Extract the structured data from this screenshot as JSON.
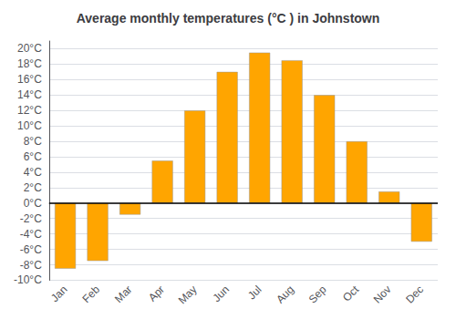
{
  "chart_data": {
    "type": "bar",
    "title": "Average monthly temperatures (°C ) in Johnstown",
    "categories": [
      "Jan",
      "Feb",
      "Mar",
      "Apr",
      "May",
      "Jun",
      "Jul",
      "Aug",
      "Sep",
      "Oct",
      "Nov",
      "Dec"
    ],
    "values": [
      -8.5,
      -7.5,
      -1.5,
      5.5,
      12.0,
      17.0,
      19.5,
      18.5,
      14.0,
      8.0,
      1.5,
      -5.0
    ],
    "color": "#FFA500",
    "ylim": [
      -10,
      21
    ],
    "yticks": [
      {
        "value": -10,
        "label": "-10°C"
      },
      {
        "value": -8,
        "label": "-8°C"
      },
      {
        "value": -6,
        "label": "-6°C"
      },
      {
        "value": -4,
        "label": "-4°C"
      },
      {
        "value": -2,
        "label": "-2°C"
      },
      {
        "value": 0,
        "label": "0°C"
      },
      {
        "value": 2,
        "label": "2°C"
      },
      {
        "value": 4,
        "label": "4°C"
      },
      {
        "value": 6,
        "label": "6°C"
      },
      {
        "value": 8,
        "label": "8°C"
      },
      {
        "value": 10,
        "label": "10°C"
      },
      {
        "value": 12,
        "label": "12°C"
      },
      {
        "value": 14,
        "label": "14°C"
      },
      {
        "value": 16,
        "label": "16°C"
      },
      {
        "value": 18,
        "label": "18°C"
      },
      {
        "value": 20,
        "label": "20°C"
      }
    ],
    "grid": true
  }
}
